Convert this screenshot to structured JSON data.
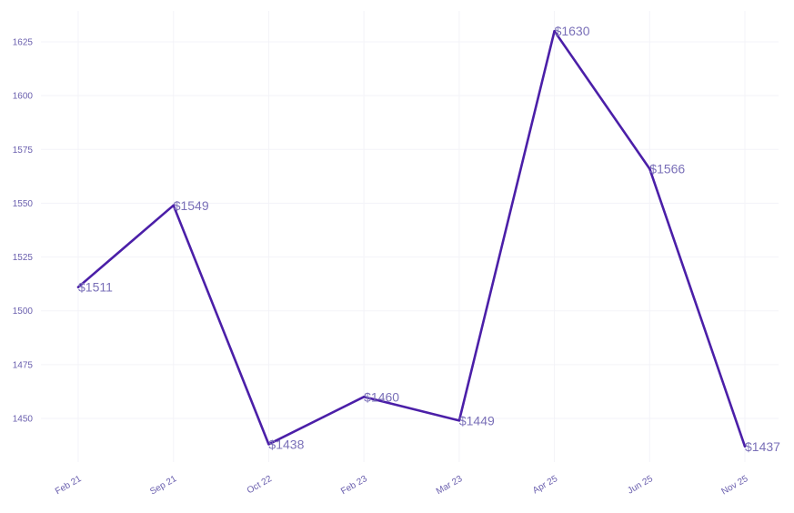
{
  "chart_data": {
    "type": "line",
    "x": [
      "Feb 21",
      "Sep 21",
      "Oct 22",
      "Feb 23",
      "Mar 23",
      "Apr 25",
      "Jun 25",
      "Nov 25"
    ],
    "values": [
      1511,
      1549,
      1438,
      1460,
      1449,
      1630,
      1566,
      1437
    ],
    "data_labels": [
      "$1511",
      "$1549",
      "$1438",
      "$1460",
      "$1449",
      "$1630",
      "$1566",
      "$1437"
    ],
    "y_ticks": [
      1450,
      1475,
      1500,
      1525,
      1550,
      1575,
      1600,
      1625
    ],
    "ylim": [
      1430,
      1637
    ],
    "title": "",
    "xlabel": "",
    "ylabel": "",
    "grid": true,
    "legend": "none",
    "line_color": "#4b1fa8",
    "label_color": "#7a70b8",
    "tick_color": "#6a5fae"
  }
}
